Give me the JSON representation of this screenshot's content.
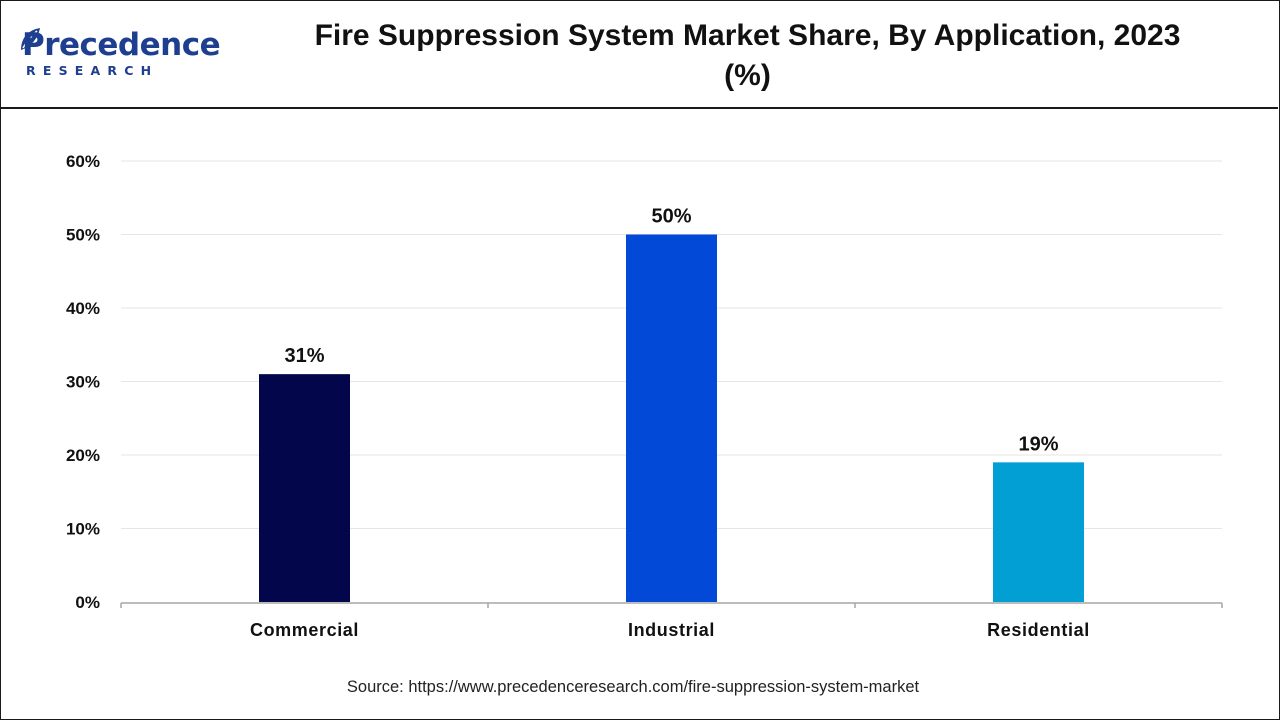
{
  "brand": {
    "name": "Precedence",
    "sub": "RESEARCH",
    "color": "#1e3f8f",
    "icon": "leaf-icon"
  },
  "title": "Fire Suppression System Market Share, By Application, 2023 (%)",
  "source": "Source: https://www.precedenceresearch.com/fire-suppression-system-market",
  "chart_data": {
    "type": "bar",
    "categories": [
      "Commercial",
      "Industrial",
      "Residential"
    ],
    "values": [
      31,
      50,
      19
    ],
    "value_labels": [
      "31%",
      "50%",
      "19%"
    ],
    "colors": [
      "#03064a",
      "#0249d8",
      "#029fd4"
    ],
    "ylim": [
      0,
      60
    ],
    "yticks": [
      0,
      10,
      20,
      30,
      40,
      50,
      60
    ],
    "ytick_labels": [
      "0%",
      "10%",
      "20%",
      "30%",
      "40%",
      "50%",
      "60%"
    ],
    "grid": true,
    "legend": "none"
  }
}
